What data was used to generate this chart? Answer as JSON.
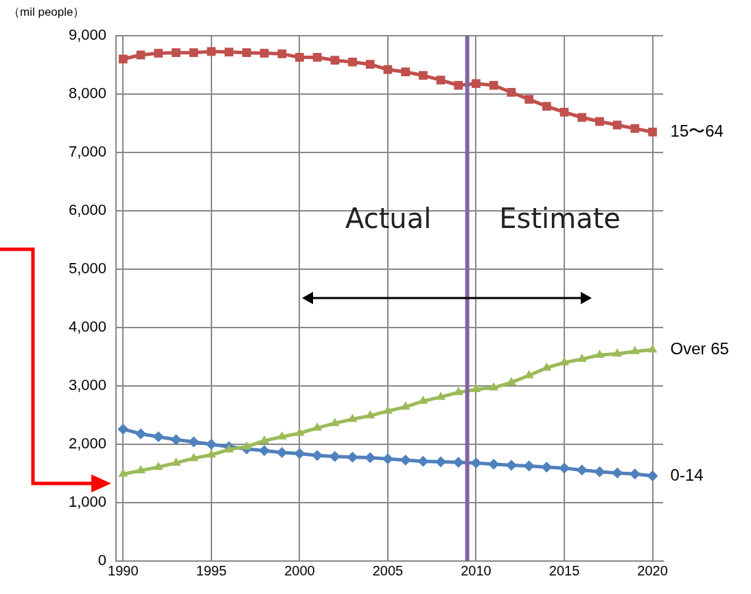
{
  "chart_data": {
    "type": "line",
    "ylabel": "（mil people）",
    "x": [
      1990,
      1991,
      1992,
      1993,
      1994,
      1995,
      1996,
      1997,
      1998,
      1999,
      2000,
      2001,
      2002,
      2003,
      2004,
      2005,
      2006,
      2007,
      2008,
      2009,
      2010,
      2011,
      2012,
      2013,
      2014,
      2015,
      2016,
      2017,
      2018,
      2019,
      2020
    ],
    "xlim": [
      1989.6,
      2020.6
    ],
    "xticks": [
      1990,
      1995,
      2000,
      2005,
      2010,
      2015,
      2020
    ],
    "ylim": [
      0,
      9000
    ],
    "yticks": [
      {
        "value": 0,
        "label": "0"
      },
      {
        "value": 1000,
        "label": "1,000"
      },
      {
        "value": 2000,
        "label": "2,000"
      },
      {
        "value": 3000,
        "label": "3,000"
      },
      {
        "value": 4000,
        "label": "4,000"
      },
      {
        "value": 5000,
        "label": "5,000"
      },
      {
        "value": 6000,
        "label": "6,000"
      },
      {
        "value": 7000,
        "label": "7,000"
      },
      {
        "value": 8000,
        "label": "8,000"
      },
      {
        "value": 9000,
        "label": "9,000"
      }
    ],
    "grid": true,
    "legend": false,
    "line_style": "solid",
    "series": [
      {
        "name": "15〜64",
        "color": "#c0504d",
        "marker": "square",
        "values": [
          8600,
          8670,
          8700,
          8710,
          8710,
          8730,
          8720,
          8710,
          8700,
          8690,
          8630,
          8630,
          8580,
          8550,
          8510,
          8420,
          8380,
          8320,
          8240,
          8150,
          8180,
          8150,
          8030,
          7910,
          7790,
          7690,
          7600,
          7530,
          7470,
          7410,
          7350
        ]
      },
      {
        "name": "Over 65",
        "color": "#9bbb59",
        "marker": "triangle",
        "values": [
          1490,
          1550,
          1610,
          1680,
          1760,
          1820,
          1910,
          1960,
          2060,
          2130,
          2190,
          2280,
          2360,
          2430,
          2490,
          2570,
          2640,
          2740,
          2810,
          2890,
          2940,
          2970,
          3060,
          3180,
          3310,
          3400,
          3460,
          3530,
          3550,
          3590,
          3620
        ]
      },
      {
        "name": "0-14",
        "color": "#4f81bd",
        "marker": "diamond",
        "values": [
          2260,
          2180,
          2130,
          2080,
          2040,
          2000,
          1960,
          1920,
          1890,
          1860,
          1840,
          1810,
          1790,
          1780,
          1770,
          1750,
          1730,
          1710,
          1700,
          1690,
          1680,
          1660,
          1640,
          1630,
          1610,
          1590,
          1560,
          1530,
          1510,
          1490,
          1460
        ]
      }
    ],
    "ref_lines": [
      {
        "axis": "x",
        "value": 2009.5,
        "color": "#8064a2"
      }
    ],
    "annotations": [
      "Actual",
      "Estimate"
    ]
  }
}
